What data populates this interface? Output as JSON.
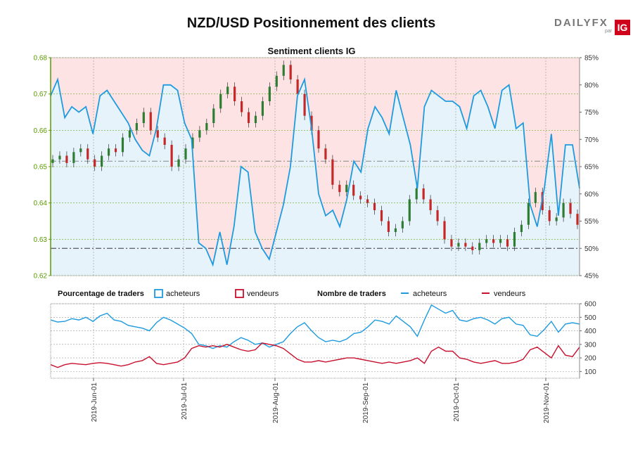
{
  "header": {
    "title": "NZD/USD Positionnement des clients",
    "logo_brand": "DAILY",
    "logo_fx": "FX",
    "logo_par": "par",
    "logo_ig": "IG"
  },
  "colors": {
    "buyers": "#1e9be0",
    "sellers": "#c8102e",
    "candle_up": "#2e7d32",
    "candle_down": "#c62828",
    "zone_sell": "#fde3e3",
    "zone_buy": "#e6f3fb",
    "left_axis": "#5a9a00"
  },
  "chart_data": [
    {
      "type": "candlestick-with-area",
      "title": "Sentiment clients IG",
      "x_ticks": [
        "2019-Jun-01",
        "2019-Jul-01",
        "2019-Aug-01",
        "2019-Sep-01",
        "2019-Oct-01",
        "2019-Nov-01"
      ],
      "left_axis": {
        "ticks": [
          0.62,
          0.63,
          0.64,
          0.65,
          0.66,
          0.67,
          0.68
        ],
        "ylim": [
          0.62,
          0.68
        ]
      },
      "right_axis": {
        "ticks": [
          "45%",
          "50%",
          "55%",
          "60%",
          "65%",
          "70%",
          "75%",
          "80%",
          "85%"
        ],
        "ylim": [
          45,
          85
        ]
      },
      "reference_lines": [
        0.6515,
        0.6275
      ],
      "price_close_series": [
        0.652,
        0.653,
        0.651,
        0.654,
        0.655,
        0.652,
        0.65,
        0.653,
        0.655,
        0.654,
        0.658,
        0.66,
        0.662,
        0.665,
        0.66,
        0.658,
        0.656,
        0.65,
        0.652,
        0.655,
        0.658,
        0.66,
        0.662,
        0.666,
        0.67,
        0.672,
        0.668,
        0.665,
        0.662,
        0.664,
        0.668,
        0.672,
        0.675,
        0.678,
        0.674,
        0.67,
        0.664,
        0.66,
        0.655,
        0.652,
        0.645,
        0.643,
        0.645,
        0.642,
        0.641,
        0.64,
        0.638,
        0.635,
        0.632,
        0.633,
        0.635,
        0.641,
        0.644,
        0.641,
        0.638,
        0.635,
        0.63,
        0.628,
        0.629,
        0.628,
        0.627,
        0.629,
        0.63,
        0.629,
        0.63,
        0.628,
        0.632,
        0.634,
        0.64,
        0.643,
        0.638,
        0.635,
        0.636,
        0.64,
        0.637,
        0.634
      ],
      "buyers_pct_series": [
        78,
        81,
        74,
        76,
        75,
        76,
        71,
        78,
        79,
        77,
        75,
        73,
        70,
        68,
        67,
        72,
        80,
        80,
        79,
        73,
        70,
        51,
        50,
        47,
        53,
        47,
        54,
        65,
        64,
        53,
        50,
        48,
        53,
        58,
        65,
        78,
        81,
        72,
        60,
        56,
        57,
        54,
        59,
        66,
        64,
        72,
        76,
        74,
        71,
        79,
        74,
        69,
        61,
        76,
        79,
        78,
        77,
        77,
        76,
        72,
        78,
        79,
        76,
        72,
        79,
        80,
        72,
        73,
        58,
        54,
        61,
        71,
        56,
        69,
        69,
        61
      ]
    },
    {
      "type": "line",
      "legend": {
        "pct_label": "Pourcentage de traders",
        "count_label": "Nombre de traders",
        "buyers": "acheteurs",
        "sellers": "vendeurs"
      },
      "right_axis": {
        "ticks": [
          "100",
          "200",
          "300",
          "400",
          "500",
          "600"
        ],
        "ylim": [
          50,
          600
        ]
      },
      "series": [
        {
          "name": "acheteurs",
          "values": [
            480,
            465,
            470,
            490,
            480,
            500,
            470,
            510,
            530,
            480,
            470,
            440,
            430,
            420,
            400,
            460,
            500,
            480,
            450,
            420,
            380,
            300,
            290,
            270,
            290,
            280,
            320,
            350,
            330,
            300,
            310,
            280,
            300,
            320,
            380,
            430,
            460,
            400,
            350,
            320,
            330,
            320,
            340,
            380,
            390,
            430,
            480,
            470,
            450,
            510,
            470,
            430,
            360,
            480,
            590,
            560,
            530,
            550,
            480,
            470,
            490,
            500,
            480,
            450,
            490,
            500,
            450,
            440,
            370,
            360,
            410,
            470,
            390,
            450,
            460,
            450
          ]
        },
        {
          "name": "vendeurs",
          "values": [
            150,
            130,
            150,
            160,
            155,
            150,
            160,
            165,
            160,
            150,
            140,
            150,
            170,
            180,
            210,
            160,
            150,
            160,
            170,
            200,
            270,
            290,
            280,
            290,
            280,
            300,
            280,
            260,
            250,
            260,
            310,
            300,
            290,
            270,
            230,
            190,
            170,
            170,
            180,
            170,
            180,
            190,
            200,
            200,
            190,
            180,
            170,
            160,
            170,
            160,
            170,
            180,
            200,
            160,
            250,
            280,
            250,
            250,
            200,
            190,
            170,
            160,
            170,
            180,
            160,
            160,
            170,
            190,
            260,
            280,
            240,
            200,
            290,
            220,
            210,
            280
          ]
        }
      ]
    }
  ]
}
